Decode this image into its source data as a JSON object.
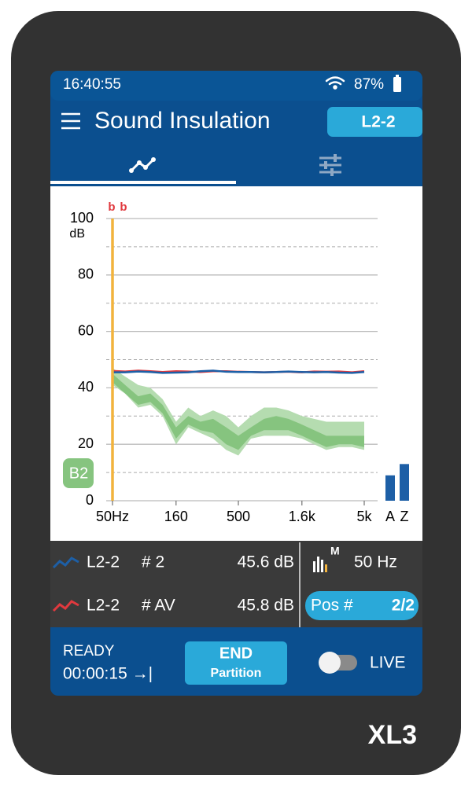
{
  "status_bar": {
    "time": "16:40:55",
    "battery": "87%"
  },
  "header": {
    "title": "Sound Insulation",
    "button": "L2-2"
  },
  "chart_data": {
    "type": "line",
    "log_x": true,
    "x": [
      50,
      63,
      80,
      100,
      125,
      160,
      200,
      250,
      315,
      400,
      500,
      630,
      800,
      1000,
      1250,
      1600,
      2000,
      2500,
      3150,
      4000,
      5000
    ],
    "xlim": [
      50,
      5000
    ],
    "xticks": [
      {
        "value": 50,
        "label": "50Hz"
      },
      160,
      500,
      {
        "value": 1600,
        "label": "1.6k"
      },
      {
        "value": 5000,
        "label": "5k"
      }
    ],
    "ylim": [
      0,
      100
    ],
    "yticks": [
      0,
      20,
      40,
      60,
      80,
      100
    ],
    "minor_yticks": [
      10,
      30,
      50,
      70,
      90
    ],
    "y_unit": "dB",
    "grid": true,
    "series": [
      {
        "name": "L2-2 # 2",
        "color": "#1d5fa6",
        "values": [
          45.5,
          45.5,
          45.8,
          45.6,
          45.3,
          45.4,
          45.5,
          45.9,
          46.1,
          45.7,
          45.6,
          45.6,
          45.5,
          45.6,
          45.8,
          45.6,
          45.5,
          45.6,
          45.4,
          45.3,
          45.6
        ]
      },
      {
        "name": "L2-2 # AV",
        "color": "#e0393e",
        "values": [
          46,
          45.8,
          46.1,
          45.9,
          45.6,
          45.9,
          45.8,
          45.6,
          45.9,
          45.9,
          45.7,
          45.6,
          45.5,
          45.6,
          45.7,
          45.5,
          45.8,
          45.7,
          45.8,
          45.5,
          45.9
        ]
      }
    ],
    "bands": [
      {
        "color": "#b5dcb0",
        "upper": [
          47,
          44,
          41,
          40,
          36,
          28,
          33,
          30,
          32,
          30,
          26,
          30,
          33,
          33,
          32,
          30,
          29,
          28,
          28,
          28,
          28
        ],
        "lower": [
          41,
          38,
          33,
          34,
          30,
          20,
          26,
          24,
          22,
          18,
          16,
          22,
          23,
          23,
          23,
          22,
          20,
          18,
          19,
          19,
          18
        ]
      },
      {
        "color": "#86c47f",
        "upper": [
          45,
          41,
          37,
          38,
          34,
          26,
          30,
          28,
          29,
          26,
          23,
          26,
          29,
          30,
          29,
          27,
          25,
          23,
          23,
          23,
          23
        ],
        "lower": [
          42,
          38,
          34,
          35,
          31,
          22,
          27,
          25,
          24,
          20,
          18,
          23,
          25,
          25,
          25,
          23,
          21,
          19,
          20,
          20,
          19
        ]
      }
    ],
    "cursor_x": 50,
    "cursor_color": "#f2b33d",
    "flags": [
      "b",
      "b"
    ],
    "badge": "B2",
    "overall": {
      "categories": [
        "A",
        "Z"
      ],
      "values": [
        9,
        13
      ],
      "color": "#1d5fa6"
    }
  },
  "readout": {
    "rows": [
      {
        "name": "L2-2",
        "number": "# 2",
        "level": "45.6 dB"
      },
      {
        "name": "L2-2",
        "number": "# AV",
        "level": "45.8 dB"
      }
    ],
    "mode_badge": "M",
    "frequency": "50 Hz",
    "position_label": "Pos #",
    "position": "2/2"
  },
  "bottom_bar": {
    "status": "READY",
    "elapsed": "00:00:15 →|",
    "button_title": "END",
    "button_subtitle": "Partition",
    "toggle_label": "LIVE"
  },
  "device_label": "XL3"
}
